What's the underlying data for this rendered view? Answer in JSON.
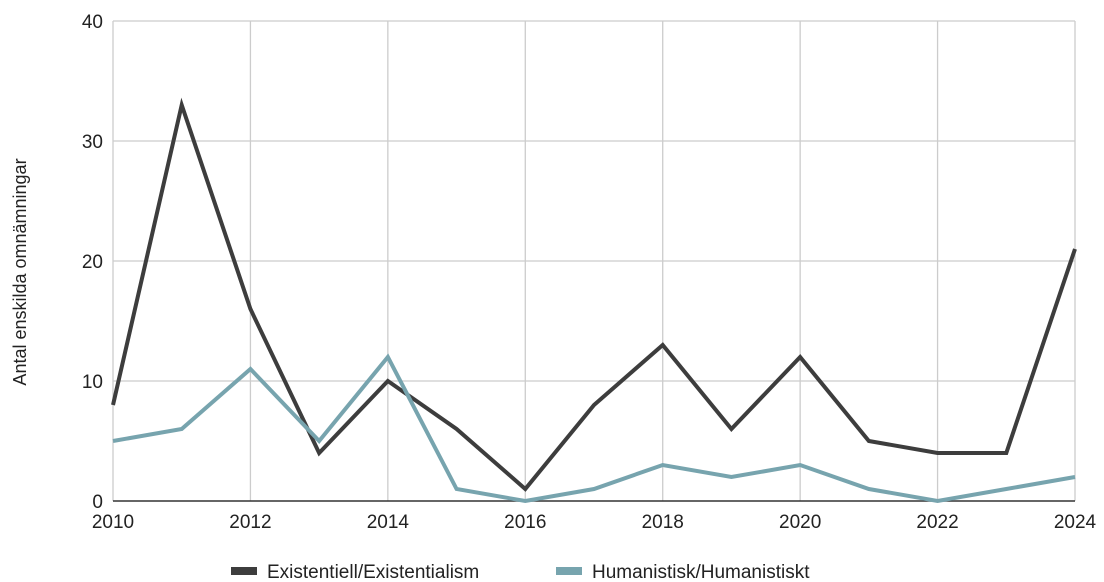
{
  "chart_data": {
    "type": "line",
    "title": "",
    "xlabel": "",
    "ylabel": "Antal enskilda omnämningar",
    "xlim": [
      2010,
      2024
    ],
    "ylim": [
      0,
      40
    ],
    "x": [
      2010,
      2011,
      2012,
      2013,
      2014,
      2015,
      2016,
      2017,
      2018,
      2019,
      2020,
      2021,
      2022,
      2023,
      2024
    ],
    "x_ticks": [
      "2010",
      "2012",
      "2014",
      "2016",
      "2018",
      "2020",
      "2022",
      "2024"
    ],
    "y_ticks": [
      "0",
      "10",
      "20",
      "30",
      "40"
    ],
    "grid": true,
    "legend_position": "bottom",
    "series": [
      {
        "name": "Existentiell/Existentialism",
        "color": "#3d3d3d",
        "values": [
          8,
          33,
          16,
          4,
          10,
          6,
          1,
          8,
          13,
          6,
          12,
          5,
          4,
          4,
          21
        ]
      },
      {
        "name": "Humanistisk/Humanistiskt",
        "color": "#77a4ae",
        "values": [
          5,
          6,
          11,
          5,
          12,
          1,
          0,
          1,
          3,
          2,
          3,
          1,
          0,
          1,
          2
        ]
      }
    ]
  }
}
